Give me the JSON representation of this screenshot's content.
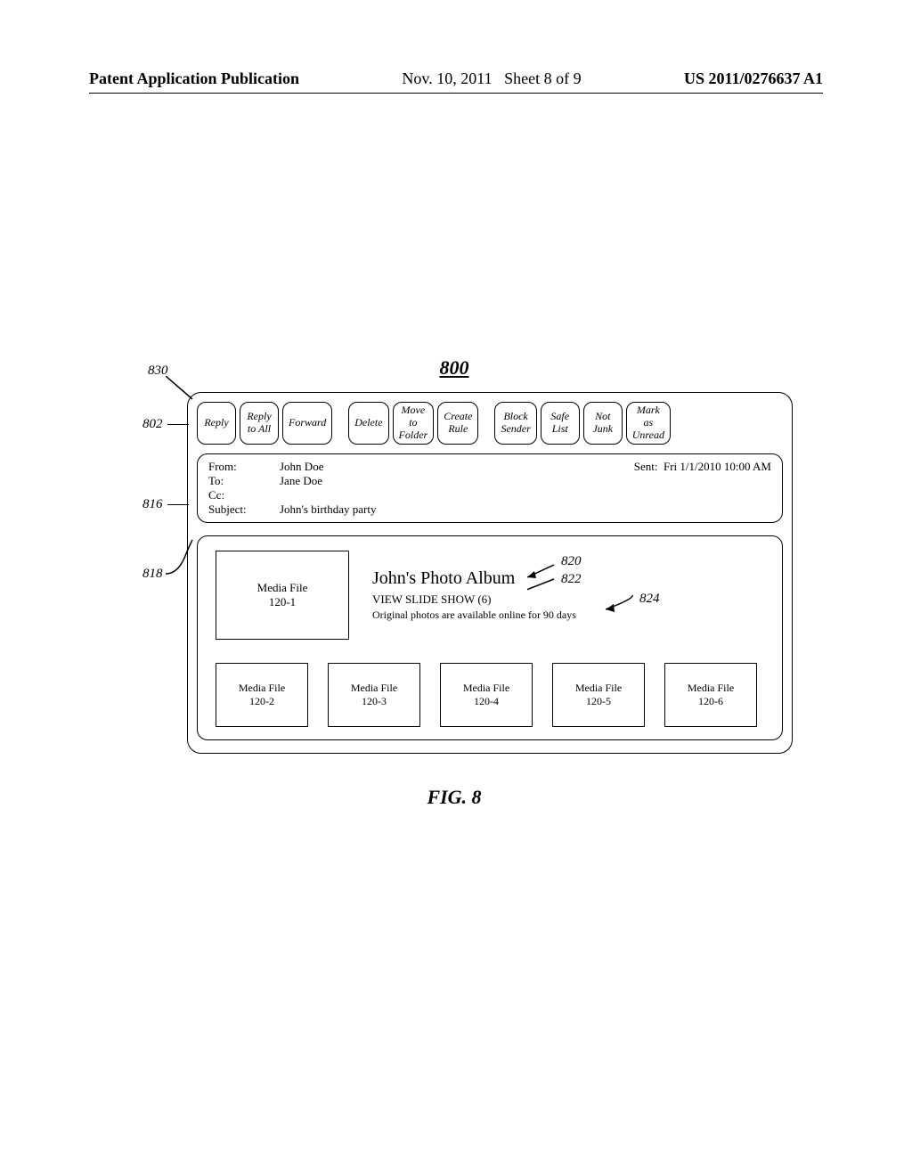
{
  "page_header": {
    "publication_label": "Patent Application Publication",
    "date": "Nov. 10, 2011",
    "sheet": "Sheet 8 of 9",
    "pub_number": "US 2011/0276637 A1"
  },
  "figure": {
    "number_top": "800",
    "caption": "FIG. 8",
    "caption_fontsize": 22,
    "refs": {
      "r830": "830",
      "r802": "802",
      "r816": "816",
      "r818": "818",
      "r820": "820",
      "r822": "822",
      "r824": "824"
    },
    "toolbar": {
      "groups": [
        {
          "buttons": [
            {
              "label": "Reply"
            },
            {
              "label": "Reply\nto All"
            },
            {
              "label": "Forward"
            }
          ]
        },
        {
          "buttons": [
            {
              "label": "Delete"
            },
            {
              "label": "Move\nto\nFolder"
            },
            {
              "label": "Create\nRule"
            }
          ]
        },
        {
          "buttons": [
            {
              "label": "Block\nSender"
            },
            {
              "label": "Safe\nList"
            },
            {
              "label": "Not\nJunk"
            },
            {
              "label": "Mark\nas\nUnread"
            }
          ]
        }
      ]
    },
    "headers": {
      "from_label": "From:",
      "from_value": "John Doe",
      "to_label": "To:",
      "to_value": "Jane Doe",
      "cc_label": "Cc:",
      "cc_value": "",
      "subject_label": "Subject:",
      "subject_value": "John's birthday party",
      "sent_label": "Sent:",
      "sent_value": "Fri 1/1/2010 10:00 AM"
    },
    "body": {
      "album_title": "John's Photo Album",
      "slideshow_link": "VIEW SLIDE SHOW (6)",
      "availability": "Original photos are available online for 90 days",
      "hero_file": {
        "name": "Media File",
        "id": "120-1"
      },
      "thumbs": [
        {
          "name": "Media File",
          "id": "120-2"
        },
        {
          "name": "Media File",
          "id": "120-3"
        },
        {
          "name": "Media File",
          "id": "120-4"
        },
        {
          "name": "Media File",
          "id": "120-5"
        },
        {
          "name": "Media File",
          "id": "120-6"
        }
      ]
    },
    "colors": {
      "stroke": "#000000",
      "background": "#ffffff"
    }
  }
}
